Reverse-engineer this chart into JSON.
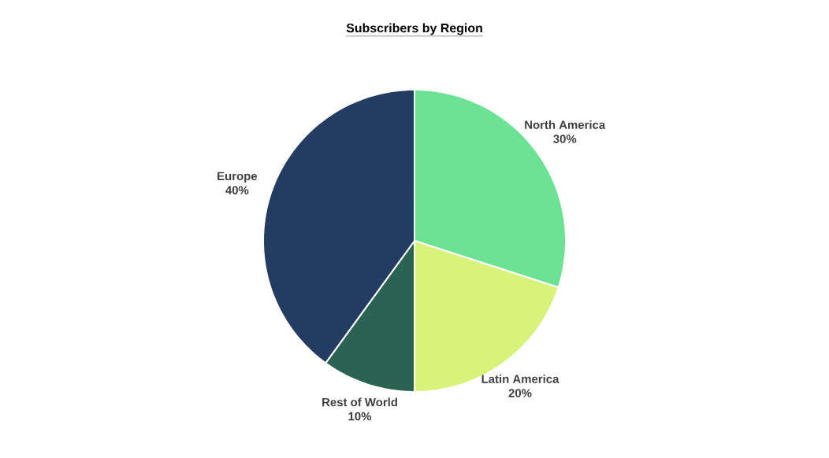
{
  "chart_data": {
    "type": "pie",
    "title": "Subscribers by Region",
    "categories": [
      "North America",
      "Latin America",
      "Rest of World",
      "Europe"
    ],
    "values": [
      30,
      20,
      10,
      40
    ],
    "value_labels": [
      "30%",
      "20%",
      "10%",
      "40%"
    ],
    "colors": [
      "#6ce393",
      "#d8f37a",
      "#2a6351",
      "#243b62"
    ]
  }
}
